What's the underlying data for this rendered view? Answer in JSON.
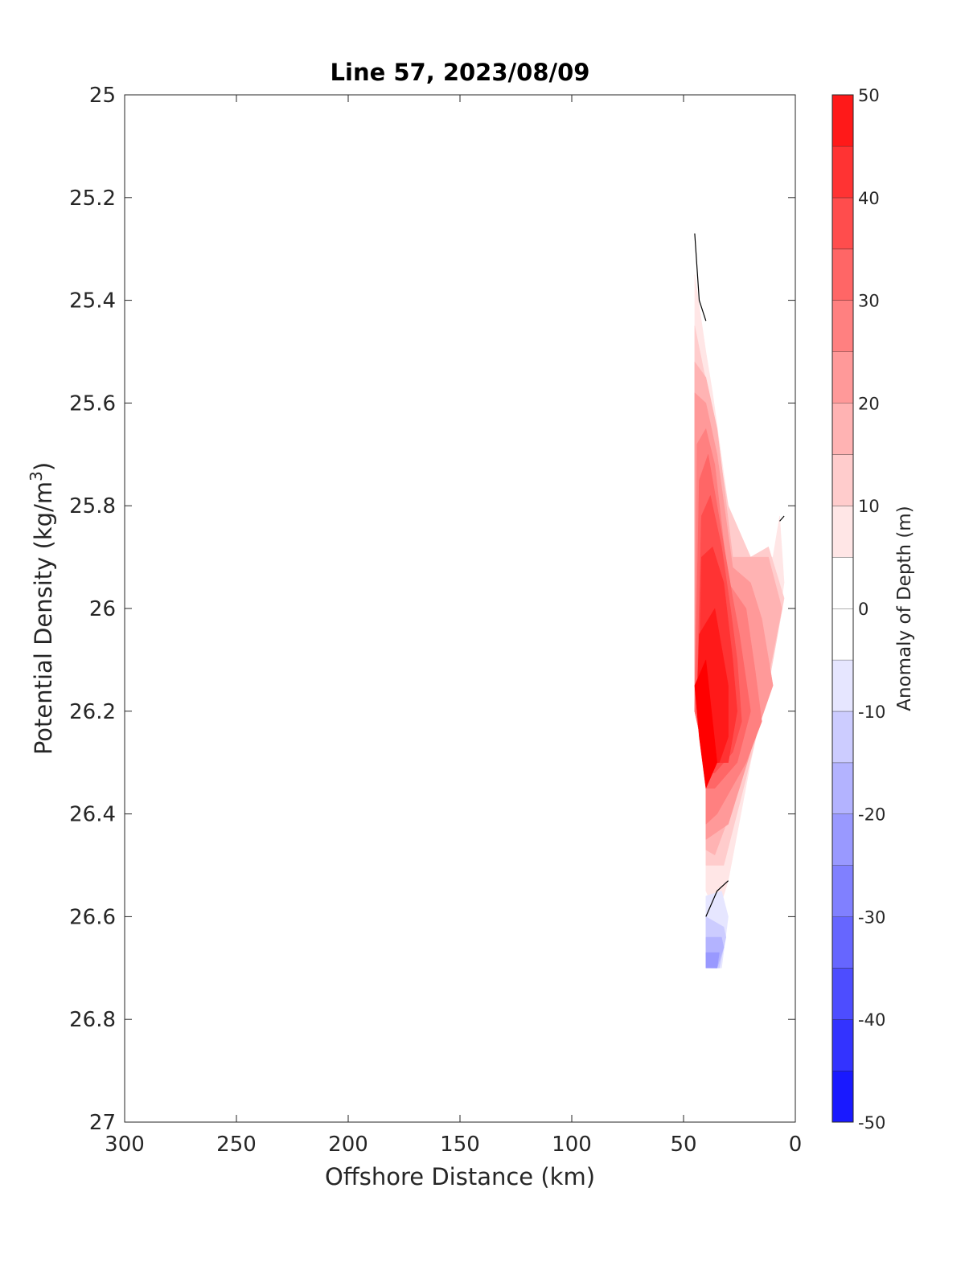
{
  "chart_data": {
    "type": "heatmap",
    "title": "Line 57, 2023/08/09",
    "xlabel": "Offshore Distance (km)",
    "ylabel_prefix": "Potential Density (kg/m",
    "ylabel_sup": "3",
    "ylabel_suffix": ")",
    "xlim": [
      300,
      0
    ],
    "ylim": [
      25,
      27
    ],
    "x_ticks": [
      300,
      250,
      200,
      150,
      100,
      50,
      0
    ],
    "y_ticks": [
      25,
      25.2,
      25.4,
      25.6,
      25.8,
      26,
      26.2,
      26.4,
      26.6,
      26.8,
      27
    ],
    "y_reversed": true,
    "grid": false,
    "colorbar": {
      "label": "Anomaly of Depth (m)",
      "ticks": [
        50,
        40,
        30,
        20,
        10,
        0,
        -10,
        -20,
        -30,
        -40,
        -50
      ],
      "range": [
        -50,
        50
      ],
      "step": 5,
      "negative_color": "#0000ff",
      "positive_color": "#ff0000"
    },
    "regions": [
      {
        "level": 5,
        "points": [
          [
            45,
            25.35
          ],
          [
            40,
            25.5
          ],
          [
            37,
            25.58
          ],
          [
            30,
            25.8
          ],
          [
            20,
            25.9
          ],
          [
            10,
            25.9
          ],
          [
            7,
            25.82
          ],
          [
            5,
            25.95
          ],
          [
            10,
            26.1
          ],
          [
            20,
            26.3
          ],
          [
            30,
            26.53
          ],
          [
            35,
            26.6
          ],
          [
            40,
            26.55
          ],
          [
            40,
            26.3
          ],
          [
            45,
            26.2
          ],
          [
            45,
            25.35
          ]
        ]
      },
      {
        "level": 10,
        "points": [
          [
            45,
            25.45
          ],
          [
            38,
            25.6
          ],
          [
            30,
            25.8
          ],
          [
            20,
            25.9
          ],
          [
            12,
            25.88
          ],
          [
            5,
            25.98
          ],
          [
            12,
            26.15
          ],
          [
            22,
            26.33
          ],
          [
            32,
            26.5
          ],
          [
            40,
            26.5
          ],
          [
            40,
            26.3
          ],
          [
            45,
            26.2
          ],
          [
            45,
            25.45
          ]
        ]
      },
      {
        "level": 15,
        "points": [
          [
            45,
            25.52
          ],
          [
            40,
            25.55
          ],
          [
            35,
            25.65
          ],
          [
            28,
            25.9
          ],
          [
            20,
            25.9
          ],
          [
            12,
            25.9
          ],
          [
            6,
            26.0
          ],
          [
            15,
            26.2
          ],
          [
            25,
            26.35
          ],
          [
            36,
            26.48
          ],
          [
            40,
            26.47
          ],
          [
            40,
            26.3
          ],
          [
            45,
            26.2
          ],
          [
            45,
            25.52
          ]
        ]
      },
      {
        "level": 20,
        "points": [
          [
            45,
            25.58
          ],
          [
            40,
            25.6
          ],
          [
            35,
            25.7
          ],
          [
            28,
            25.92
          ],
          [
            20,
            25.95
          ],
          [
            15,
            26.02
          ],
          [
            10,
            26.15
          ],
          [
            18,
            26.25
          ],
          [
            30,
            26.42
          ],
          [
            40,
            26.45
          ],
          [
            40,
            26.3
          ],
          [
            45,
            26.2
          ],
          [
            45,
            25.58
          ]
        ]
      },
      {
        "level": 25,
        "points": [
          [
            44,
            25.68
          ],
          [
            40,
            25.65
          ],
          [
            36,
            25.72
          ],
          [
            30,
            25.95
          ],
          [
            22,
            26.0
          ],
          [
            18,
            26.12
          ],
          [
            15,
            26.22
          ],
          [
            22,
            26.3
          ],
          [
            35,
            26.4
          ],
          [
            40,
            26.42
          ],
          [
            40,
            26.3
          ],
          [
            45,
            26.2
          ],
          [
            44,
            25.68
          ]
        ]
      },
      {
        "level": 30,
        "points": [
          [
            43,
            25.75
          ],
          [
            39,
            25.7
          ],
          [
            35,
            25.8
          ],
          [
            28,
            25.98
          ],
          [
            25,
            26.05
          ],
          [
            20,
            26.2
          ],
          [
            26,
            26.3
          ],
          [
            36,
            26.35
          ],
          [
            40,
            26.35
          ],
          [
            40,
            26.3
          ],
          [
            45,
            26.2
          ],
          [
            43,
            25.75
          ]
        ]
      },
      {
        "level": 35,
        "points": [
          [
            42,
            25.82
          ],
          [
            38,
            25.78
          ],
          [
            33,
            25.88
          ],
          [
            29,
            26.0
          ],
          [
            26,
            26.1
          ],
          [
            24,
            26.22
          ],
          [
            28,
            26.28
          ],
          [
            36,
            26.32
          ],
          [
            40,
            26.32
          ],
          [
            40,
            26.3
          ],
          [
            44,
            26.18
          ],
          [
            42,
            25.82
          ]
        ]
      },
      {
        "level": 40,
        "points": [
          [
            42,
            25.9
          ],
          [
            37,
            25.88
          ],
          [
            32,
            25.95
          ],
          [
            28,
            26.1
          ],
          [
            26,
            26.2
          ],
          [
            30,
            26.3
          ],
          [
            38,
            26.3
          ],
          [
            43,
            26.15
          ],
          [
            42,
            25.9
          ]
        ]
      },
      {
        "level": 45,
        "points": [
          [
            43,
            26.05
          ],
          [
            36,
            26.0
          ],
          [
            30,
            26.15
          ],
          [
            30,
            26.25
          ],
          [
            34,
            26.3
          ],
          [
            40,
            26.3
          ],
          [
            44,
            26.18
          ],
          [
            43,
            26.05
          ]
        ]
      },
      {
        "level": 50,
        "points": [
          [
            45,
            26.15
          ],
          [
            40,
            26.1
          ],
          [
            35,
            26.3
          ],
          [
            40,
            26.35
          ],
          [
            43,
            26.25
          ],
          [
            45,
            26.15
          ]
        ]
      },
      {
        "level": -5,
        "points": [
          [
            40,
            26.56
          ],
          [
            33,
            26.55
          ],
          [
            30,
            26.6
          ],
          [
            33,
            26.7
          ],
          [
            36,
            26.7
          ],
          [
            40,
            26.65
          ],
          [
            40,
            26.56
          ]
        ]
      },
      {
        "level": -10,
        "points": [
          [
            40,
            26.6
          ],
          [
            32,
            26.62
          ],
          [
            31,
            26.64
          ],
          [
            34,
            26.7
          ],
          [
            37,
            26.7
          ],
          [
            40,
            26.66
          ],
          [
            40,
            26.6
          ]
        ]
      },
      {
        "level": -15,
        "points": [
          [
            40,
            26.64
          ],
          [
            33,
            26.64
          ],
          [
            32,
            26.66
          ],
          [
            35,
            26.7
          ],
          [
            38,
            26.7
          ],
          [
            40,
            26.68
          ],
          [
            40,
            26.64
          ]
        ]
      },
      {
        "level": -20,
        "points": [
          [
            40,
            26.67
          ],
          [
            34,
            26.67
          ],
          [
            35,
            26.7
          ],
          [
            38,
            26.7
          ],
          [
            40,
            26.7
          ],
          [
            40,
            26.67
          ]
        ]
      }
    ],
    "zero_contours": [
      [
        [
          45,
          25.27
        ],
        [
          43,
          25.4
        ],
        [
          40,
          25.44
        ]
      ],
      [
        [
          40,
          26.6
        ],
        [
          35,
          26.55
        ],
        [
          30,
          26.53
        ]
      ],
      [
        [
          7,
          25.83
        ],
        [
          5,
          25.82
        ]
      ]
    ]
  }
}
